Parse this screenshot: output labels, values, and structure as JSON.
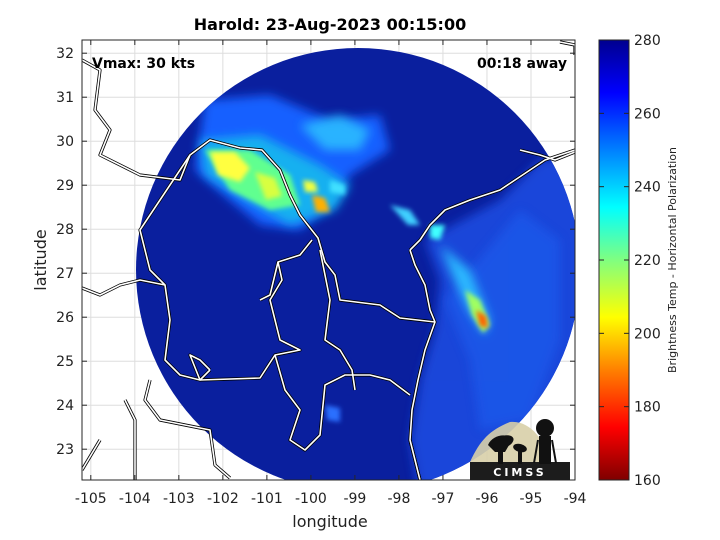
{
  "title": "Harold: 23-Aug-2023 00:15:00",
  "xlabel": "longitude",
  "ylabel": "latitude",
  "annotations": {
    "vmax": "Vmax: 30 kts",
    "away": "00:18 away"
  },
  "x_ticks": [
    "-105",
    "-104",
    "-103",
    "-102",
    "-101",
    "-100",
    "-99",
    "-98",
    "-97",
    "-96",
    "-95",
    "-94"
  ],
  "y_ticks": [
    "23",
    "24",
    "25",
    "26",
    "27",
    "28",
    "29",
    "30",
    "31",
    "32"
  ],
  "colorbar": {
    "label": "Brightness Temp - Horizontal Polarization",
    "ticks": [
      "160",
      "180",
      "200",
      "220",
      "240",
      "260",
      "280"
    ],
    "range": [
      160,
      280
    ],
    "colors": [
      "#7f0000",
      "#ff0000",
      "#ff8000",
      "#ffff00",
      "#80ff80",
      "#00ffff",
      "#0080ff",
      "#0000ff",
      "#00008f"
    ]
  },
  "logo_text": "CIMSS",
  "map": {
    "lon_range": [
      -105.2,
      -94
    ],
    "lat_range": [
      22.3,
      32.3
    ],
    "background_color": "#0a1f9e",
    "outside_color": "#ffffff"
  }
}
